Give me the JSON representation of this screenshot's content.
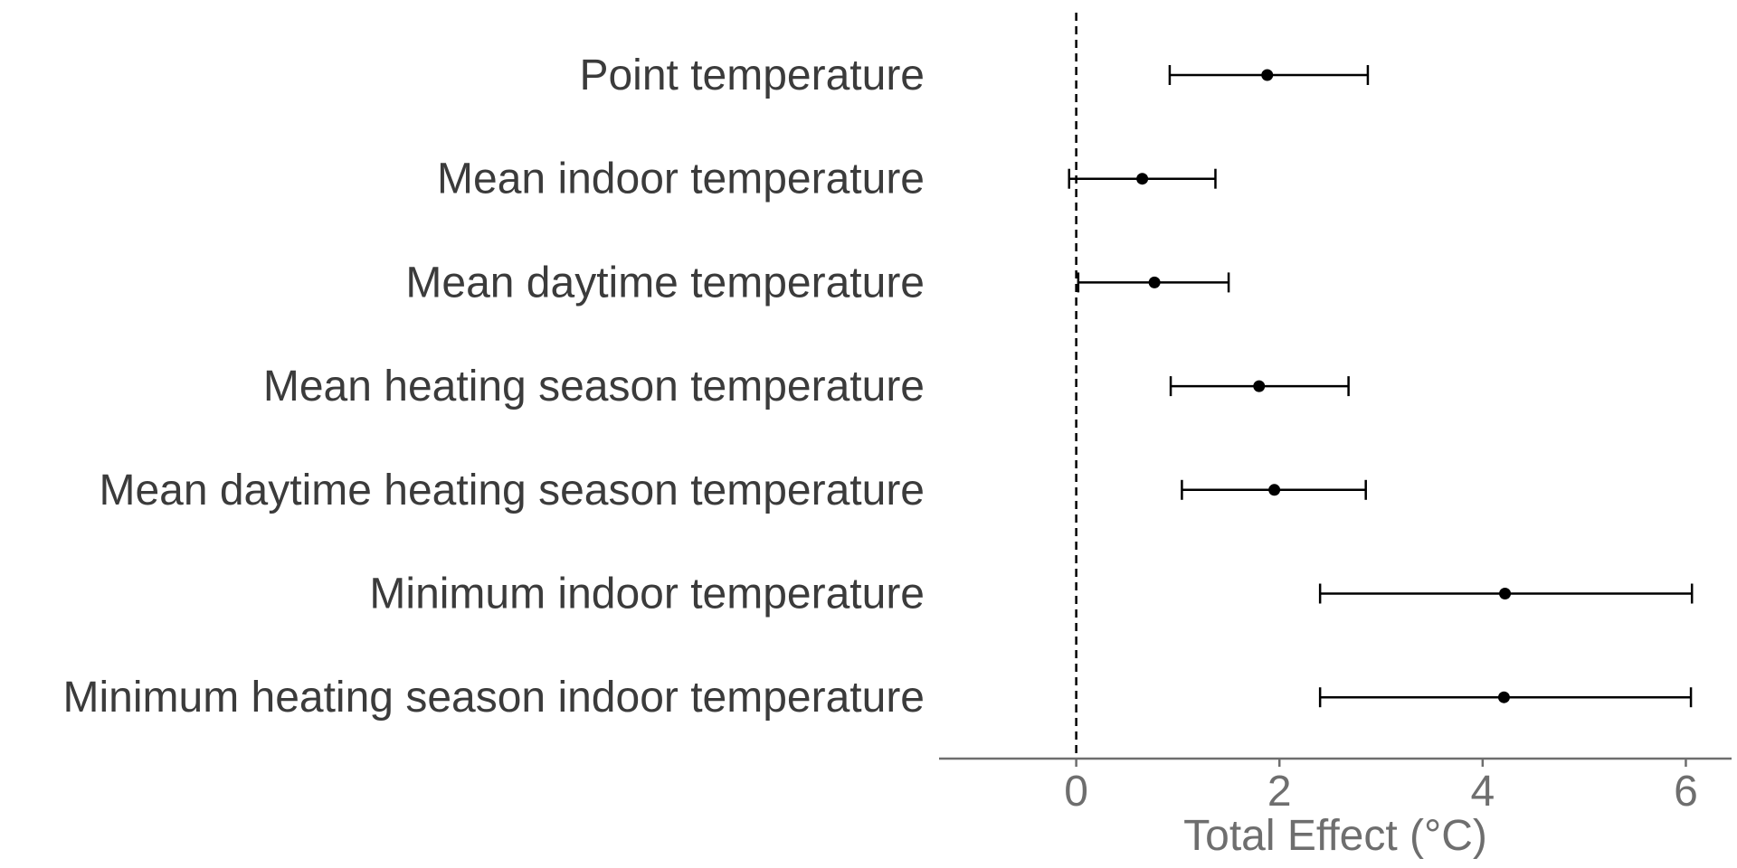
{
  "chart_data": {
    "type": "forest",
    "title": "",
    "xlabel": "Total Effect (°C)",
    "ylabel": "",
    "xlim": [
      -1.35,
      6.45
    ],
    "xticks": [
      0,
      2,
      4,
      6
    ],
    "xtick_labels": [
      "0",
      "2",
      "4",
      "6"
    ],
    "reference_line": 0,
    "grid": false,
    "legend": "none",
    "colors": {
      "points": "#000000",
      "axis": "#6e6e6e",
      "category_text": "#3b3b3b",
      "tick_text": "#6e6e6e"
    },
    "categories": [
      "Point temperature",
      "Mean indoor temperature",
      "Mean daytime temperature",
      "Mean heating season temperature",
      "Mean daytime heating season temperature",
      "Minimum indoor temperature",
      "Minimum heating season indoor temperature"
    ],
    "estimates": [
      1.88,
      0.65,
      0.77,
      1.8,
      1.95,
      4.22,
      4.21
    ],
    "lower": [
      0.92,
      -0.07,
      0.02,
      0.93,
      1.04,
      2.4,
      2.4
    ],
    "upper": [
      2.87,
      1.37,
      1.5,
      2.68,
      2.85,
      6.06,
      6.05
    ]
  }
}
